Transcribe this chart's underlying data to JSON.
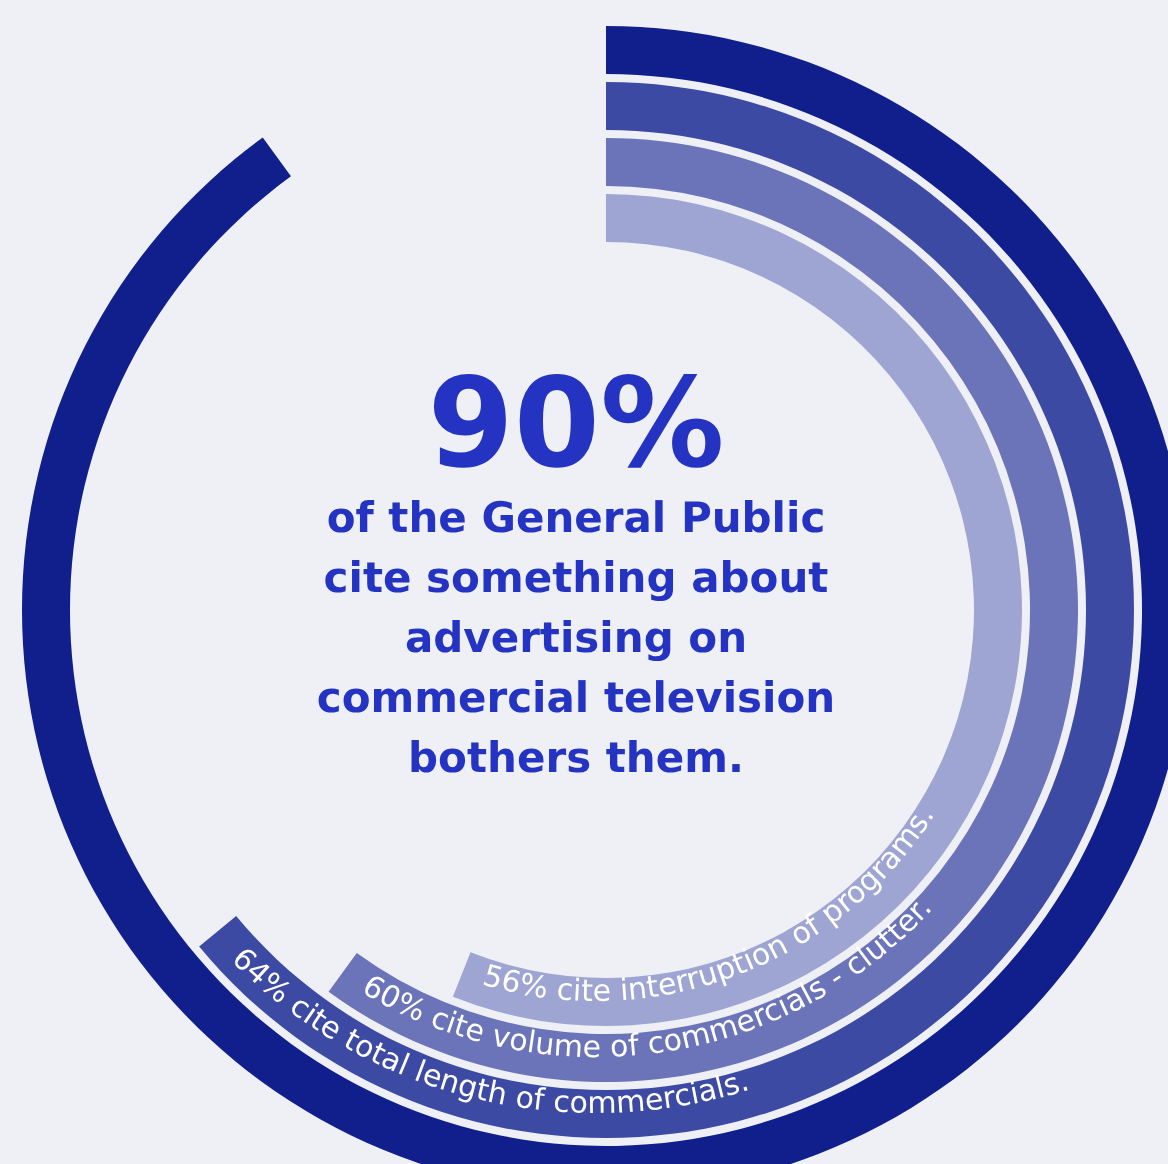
{
  "chart_data": {
    "type": "other",
    "subtitle": "of the General Public cite something about advertising on commercial television bothers them.",
    "categories": [
      null,
      "cite total length of commercials.",
      "cite volume of commercials - clutter.",
      "cite interruption of programs."
    ],
    "values": [
      90,
      64,
      60,
      56
    ],
    "value_labels": [
      "90%",
      "64%",
      "60%",
      "56%"
    ],
    "colors": [
      "#101f8c",
      "#3d4aa3",
      "#6b74b8",
      "#9ea5d2"
    ]
  }
}
